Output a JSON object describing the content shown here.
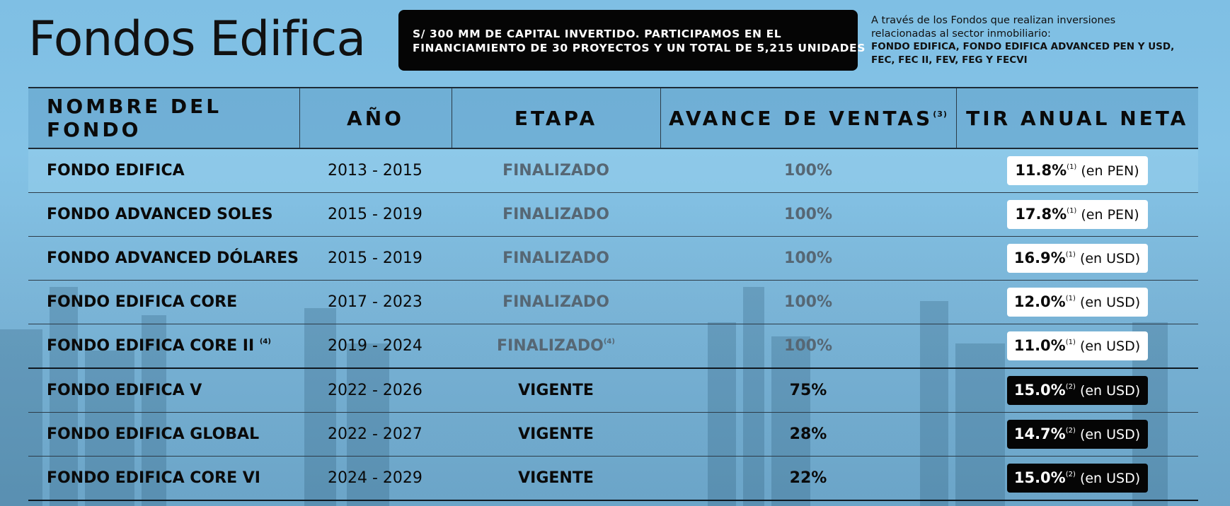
{
  "header": {
    "title": "Fondos Edifica",
    "banner_line1": "S/ 300 MM DE CAPITAL INVERTIDO. PARTICIPAMOS EN EL",
    "banner_line2": "FINANCIAMIENTO DE 30 PROYECTOS Y UN TOTAL DE 5,215 UNIDADES",
    "note_line1": "A través de los Fondos que realizan inversiones",
    "note_line2": "relacionadas al sector inmobiliario:",
    "note_line3": "FONDO EDIFICA, FONDO EDIFICA ADVANCED PEN Y USD,",
    "note_line4": "FEC, FEC II, FEV, FEG Y FECVI"
  },
  "table": {
    "columns": [
      "NOMBRE DEL FONDO",
      "AÑO",
      "ETAPA",
      "AVANCE DE VENTAS",
      "TIR ANUAL NETA"
    ],
    "sales_note": "(3)",
    "rows": [
      {
        "name": "FONDO EDIFICA",
        "name_note": "",
        "year": "2013 - 2015",
        "stage": "FINALIZADO",
        "stage_note": "",
        "sales": "100%",
        "tir": "11.8%",
        "tir_note": "(1)",
        "currency": "(en PEN)"
      },
      {
        "name": "FONDO ADVANCED SOLES",
        "name_note": "",
        "year": "2015 - 2019",
        "stage": "FINALIZADO",
        "stage_note": "",
        "sales": "100%",
        "tir": "17.8%",
        "tir_note": "(1)",
        "currency": "(en PEN)"
      },
      {
        "name": "FONDO ADVANCED DÓLARES",
        "name_note": "",
        "year": "2015 - 2019",
        "stage": "FINALIZADO",
        "stage_note": "",
        "sales": "100%",
        "tir": "16.9%",
        "tir_note": "(1)",
        "currency": "(en USD)"
      },
      {
        "name": "FONDO EDIFICA CORE",
        "name_note": "",
        "year": "2017 - 2023",
        "stage": "FINALIZADO",
        "stage_note": "",
        "sales": "100%",
        "tir": "12.0%",
        "tir_note": "(1)",
        "currency": "(en USD)"
      },
      {
        "name": "FONDO EDIFICA CORE II",
        "name_note": "(4)",
        "year": "2019 - 2024",
        "stage": "FINALIZADO",
        "stage_note": "(4)",
        "sales": "100%",
        "tir": "11.0%",
        "tir_note": "(1)",
        "currency": "(en USD)"
      },
      {
        "name": "FONDO EDIFICA V",
        "name_note": "",
        "year": "2022 - 2026",
        "stage": "VIGENTE",
        "stage_note": "",
        "sales": "75%",
        "tir": "15.0%",
        "tir_note": "(2)",
        "currency": "(en USD)"
      },
      {
        "name": "FONDO EDIFICA GLOBAL",
        "name_note": "",
        "year": "2022 - 2027",
        "stage": "VIGENTE",
        "stage_note": "",
        "sales": "28%",
        "tir": "14.7%",
        "tir_note": "(2)",
        "currency": "(en USD)"
      },
      {
        "name": "FONDO EDIFICA CORE VI",
        "name_note": "",
        "year": "2024 - 2029",
        "stage": "VIGENTE",
        "stage_note": "",
        "sales": "22%",
        "tir": "15.0%",
        "tir_note": "(2)",
        "currency": "(en USD)"
      }
    ]
  },
  "colors": {
    "background": "#84c3e6",
    "finalized_text": "#566774",
    "active_box": "#050505",
    "finalized_box": "#ffffff"
  }
}
